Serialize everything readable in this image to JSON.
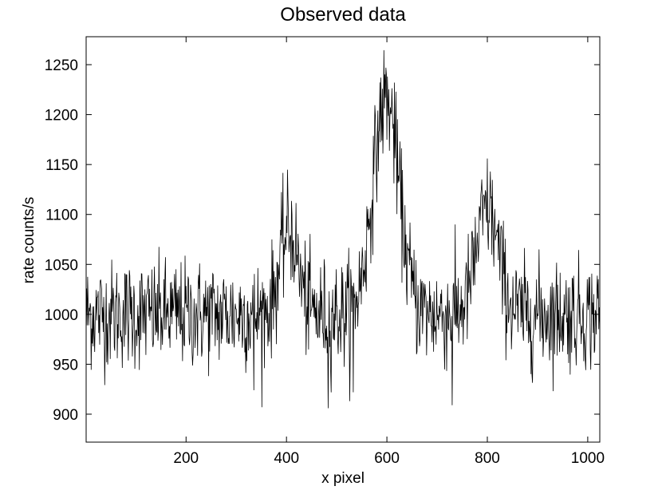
{
  "chart_data": {
    "type": "line",
    "title": "Observed data",
    "xlabel": "x pixel",
    "ylabel": "rate counts/s",
    "xlim": [
      1,
      1024
    ],
    "ylim": [
      872,
      1278
    ],
    "xticks": [
      200,
      400,
      600,
      800,
      1000
    ],
    "yticks": [
      900,
      950,
      1000,
      1050,
      1100,
      1150,
      1200,
      1250
    ],
    "grid": false,
    "legend": "none",
    "line_color": "#000000",
    "baseline": 1000,
    "noise_sigma": 27,
    "peaks": [
      {
        "center": 405,
        "amplitude": 85,
        "width": 18
      },
      {
        "center": 598,
        "amplitude": 215,
        "width": 26
      },
      {
        "center": 800,
        "amplitude": 105,
        "width": 22
      }
    ],
    "extreme_points": [
      {
        "x": 483,
        "y": 906
      },
      {
        "x": 598,
        "y": 1247
      },
      {
        "x": 615,
        "y": 1232
      },
      {
        "x": 730,
        "y": 909
      },
      {
        "x": 806,
        "y": 1143
      },
      {
        "x": 533,
        "y": 922
      },
      {
        "x": 335,
        "y": 924
      }
    ]
  }
}
